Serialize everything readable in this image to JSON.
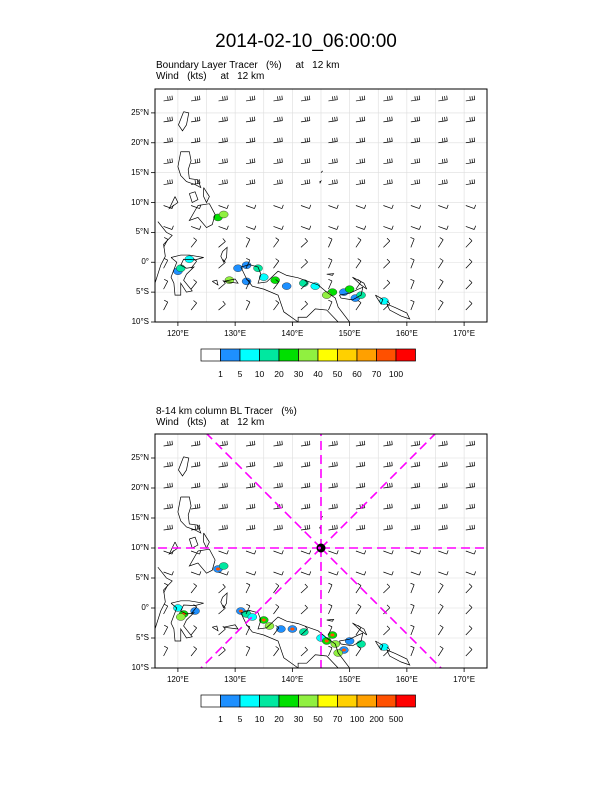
{
  "title": "2014-02-10_06:00:00",
  "panels": [
    {
      "subtitle_line1": "Boundary Layer Tracer   (%)     at   12 km",
      "subtitle_line2": "Wind   (kts)     at   12 km",
      "colorbar": {
        "labels": [
          "1",
          "5",
          "10",
          "20",
          "30",
          "40",
          "50",
          "60",
          "70",
          "100"
        ],
        "colors": [
          "#ffffff",
          "#1e90ff",
          "#00ffff",
          "#00e8a0",
          "#00e000",
          "#90f040",
          "#ffff00",
          "#ffd000",
          "#ffa000",
          "#ff5000",
          "#ff0000"
        ]
      },
      "blobs": [
        [
          -1.5,
          120
        ],
        [
          -1,
          120.5
        ],
        [
          0.5,
          122
        ],
        [
          7.5,
          127
        ],
        [
          8,
          128
        ],
        [
          -1,
          130.5
        ],
        [
          -0.5,
          132
        ],
        [
          -1,
          134
        ],
        [
          -2.5,
          135
        ],
        [
          -3,
          137
        ],
        [
          -3,
          129
        ],
        [
          -3.2,
          132
        ],
        [
          -4,
          139
        ],
        [
          -3.5,
          142
        ],
        [
          -4,
          144
        ],
        [
          -5,
          147
        ],
        [
          -5.5,
          146
        ],
        [
          -5,
          149
        ],
        [
          -6,
          151
        ],
        [
          -5.5,
          152
        ],
        [
          -6.5,
          156
        ],
        [
          -4.5,
          150
        ]
      ]
    },
    {
      "subtitle_line1": "8-14 km column BL Tracer   (%)",
      "subtitle_line2": "Wind   (kts)     at   12 km",
      "colorbar": {
        "labels": [
          "1",
          "5",
          "10",
          "20",
          "30",
          "50",
          "70",
          "100",
          "200",
          "500"
        ],
        "colors": [
          "#ffffff",
          "#1e90ff",
          "#00ffff",
          "#00e8a0",
          "#00e000",
          "#90f040",
          "#ffff00",
          "#ffd000",
          "#ffa000",
          "#ff5000",
          "#ff0000"
        ]
      },
      "blobs": [
        [
          6.5,
          127
        ],
        [
          7,
          128
        ],
        [
          0,
          120
        ],
        [
          -1,
          121
        ],
        [
          -1.5,
          120.5
        ],
        [
          -0.5,
          123
        ],
        [
          -0.5,
          131
        ],
        [
          -1,
          132
        ],
        [
          -1.5,
          133
        ],
        [
          -2,
          135
        ],
        [
          -3,
          136
        ],
        [
          -3.5,
          138
        ],
        [
          -3.5,
          140
        ],
        [
          -4,
          142
        ],
        [
          -5,
          145
        ],
        [
          -4.5,
          147
        ],
        [
          -6,
          147.5
        ],
        [
          -5.5,
          150
        ],
        [
          -7,
          149
        ],
        [
          -6,
          152
        ],
        [
          -6.5,
          156
        ],
        [
          -5.5,
          146
        ],
        [
          -7.5,
          148
        ]
      ],
      "marker": {
        "lat": 10,
        "lon": 145
      }
    }
  ],
  "axes": {
    "lat_labels": [
      "25°N",
      "20°N",
      "15°N",
      "10°N",
      "5°N",
      "0°",
      "5°S",
      "10°S"
    ],
    "lat_values": [
      25,
      20,
      15,
      10,
      5,
      0,
      -5,
      -10
    ],
    "lon_labels": [
      "120°E",
      "130°E",
      "140°E",
      "150°E",
      "160°E",
      "170°E"
    ],
    "lon_values": [
      120,
      130,
      140,
      150,
      160,
      170
    ],
    "lon_range": [
      116,
      174
    ],
    "lat_range": [
      -10,
      29
    ]
  }
}
